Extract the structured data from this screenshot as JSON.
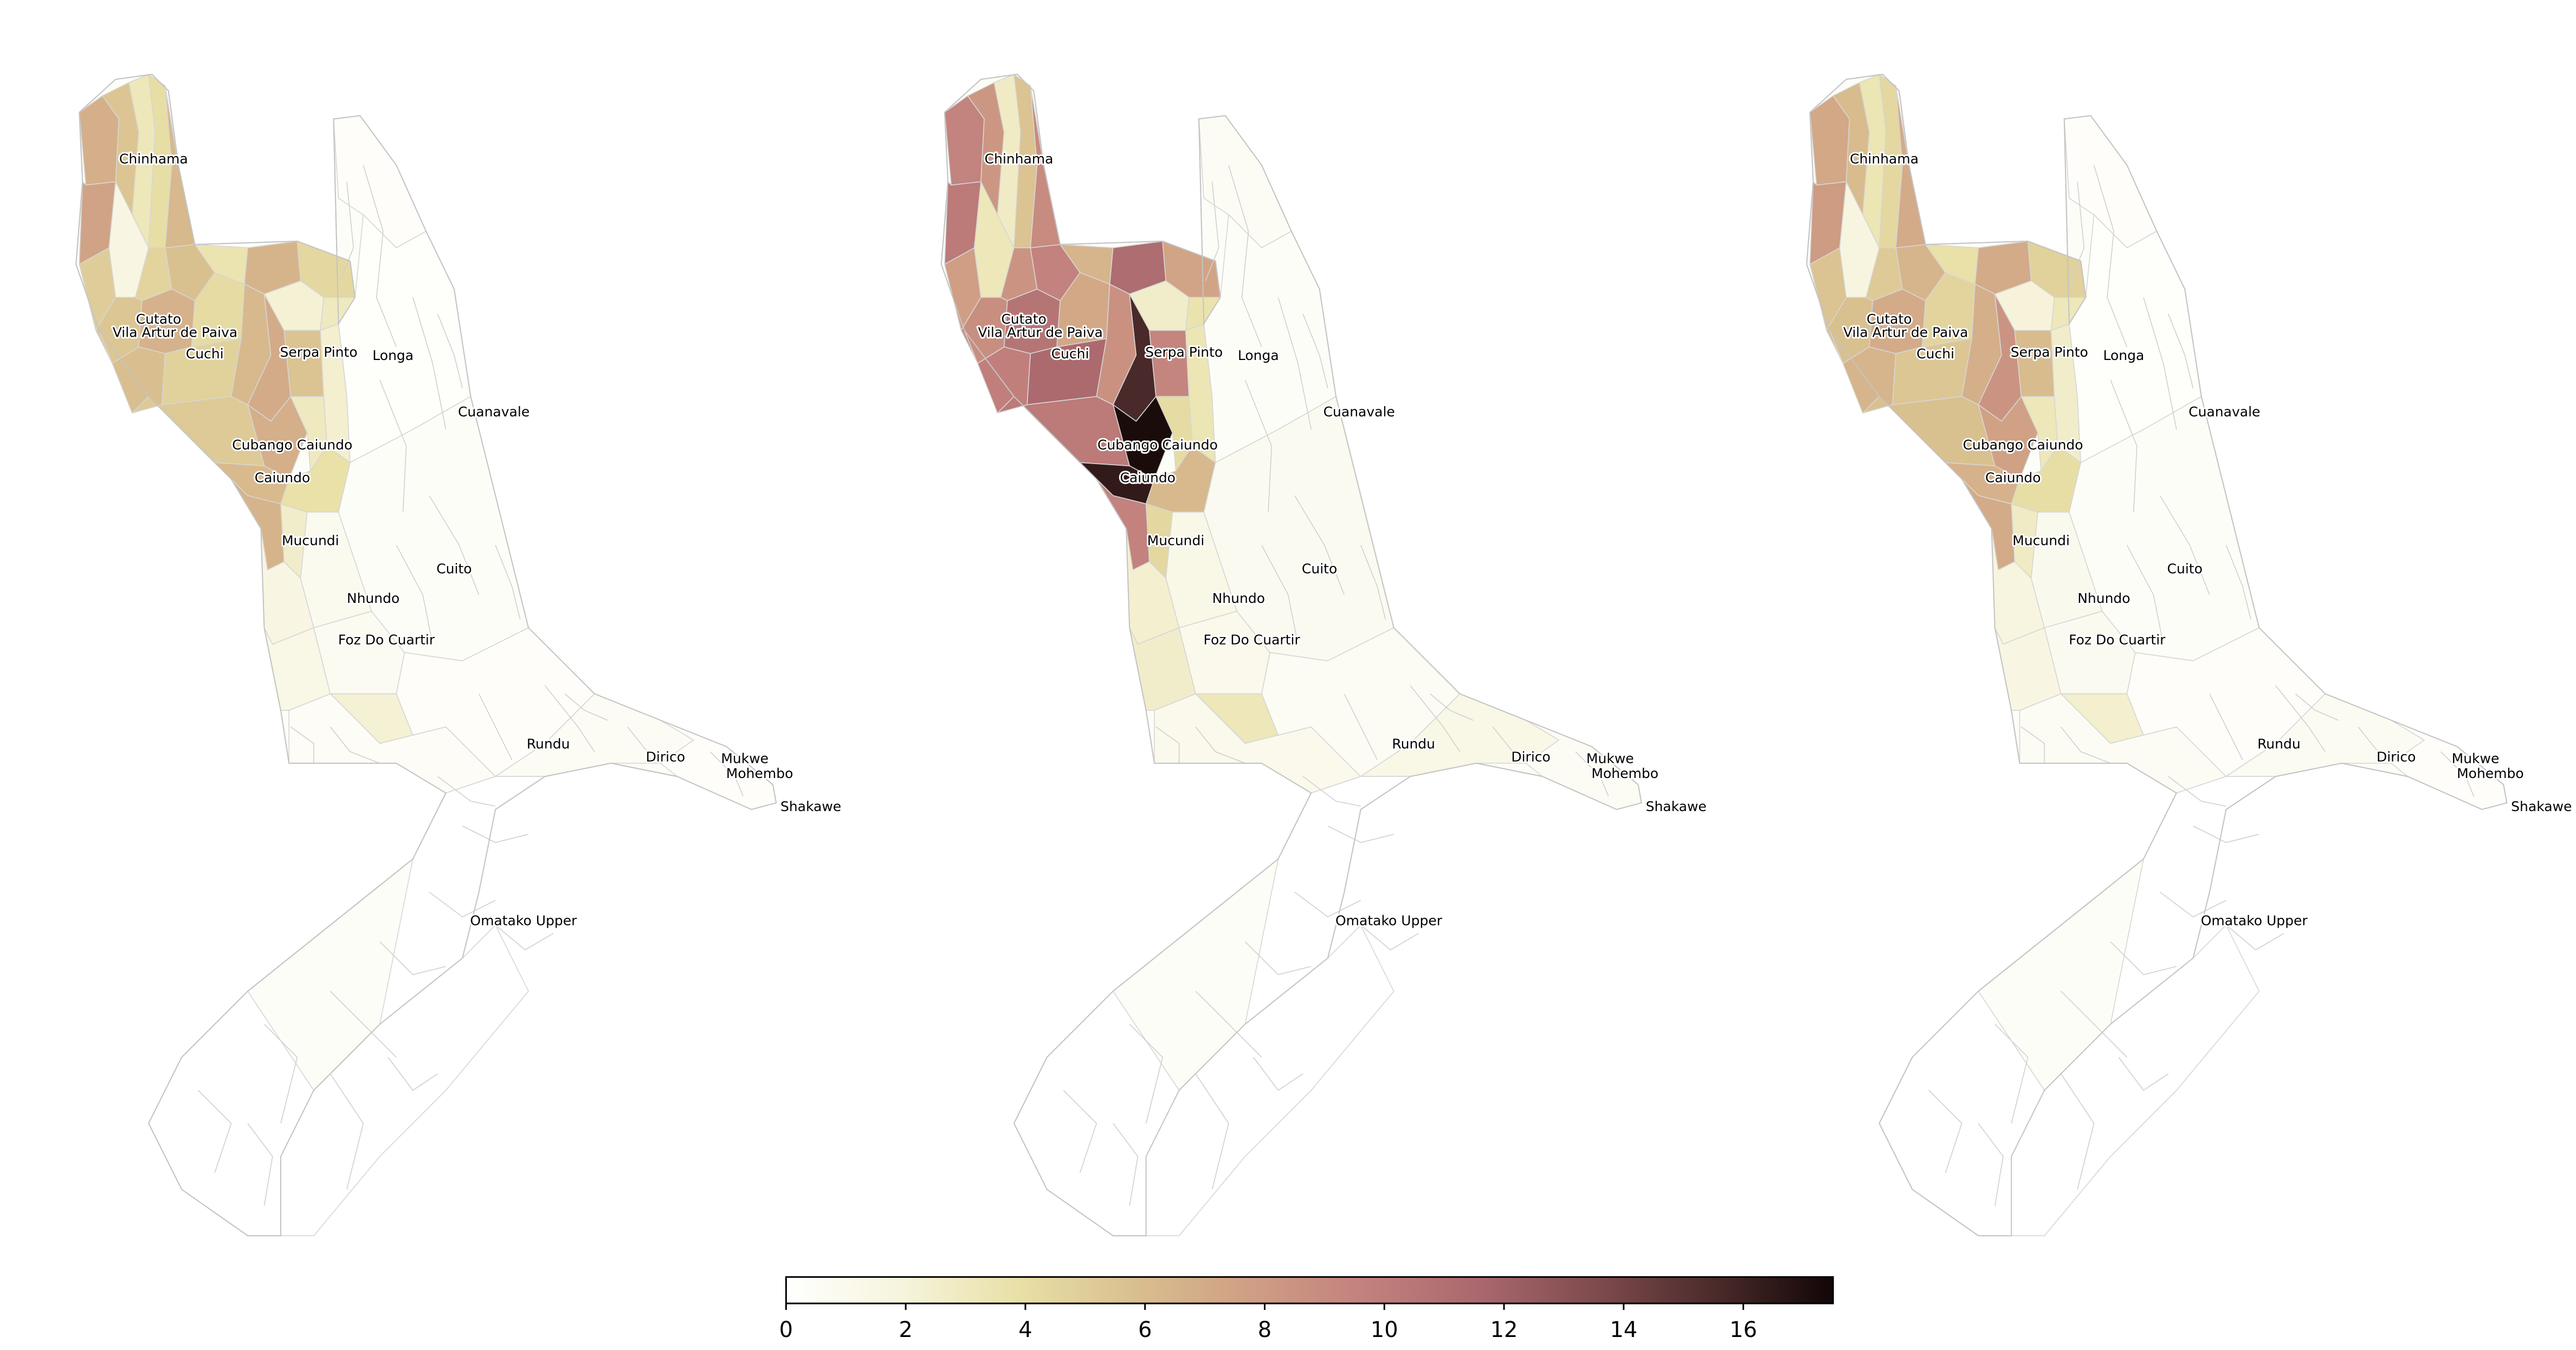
{
  "maps": [
    {
      "panel": "left",
      "regions": [
        {
          "area": "north-west-lobe",
          "value": 6.8
        },
        {
          "area": "north-strip-1",
          "value": 5.5
        },
        {
          "area": "north-strip-2",
          "value": 3.2
        },
        {
          "area": "north-strip-3",
          "value": 4.0
        },
        {
          "area": "north-strip-4",
          "value": 6.2
        },
        {
          "area": "north-west-edge",
          "value": 7.5
        },
        {
          "area": "chinhama-west",
          "value": 5.0
        },
        {
          "area": "chinhama-light",
          "value": 1.6
        },
        {
          "area": "upper-mid-1",
          "value": 4.6
        },
        {
          "area": "upper-mid-2",
          "value": 5.8
        },
        {
          "area": "upper-mid-3",
          "value": 3.5
        },
        {
          "area": "upper-mid-4",
          "value": 6.5
        },
        {
          "area": "upper-east-1",
          "value": 4.4
        },
        {
          "area": "upper-east-2",
          "value": 3.0
        },
        {
          "area": "upper-east-3",
          "value": 2.2
        },
        {
          "area": "cutato-1",
          "value": 5.4
        },
        {
          "area": "cutato-2",
          "value": 6.6
        },
        {
          "area": "cutato-3",
          "value": 4.2
        },
        {
          "area": "cuchi-1",
          "value": 5.9
        },
        {
          "area": "cuchi-2",
          "value": 4.8
        },
        {
          "area": "cuchi-3",
          "value": 6.2
        },
        {
          "area": "serpa-1",
          "value": 7.0
        },
        {
          "area": "serpa-2",
          "value": 5.6
        },
        {
          "area": "serpa-3",
          "value": 2.4
        },
        {
          "area": "cubango-1",
          "value": 6.8
        },
        {
          "area": "cubango-2",
          "value": 5.2
        },
        {
          "area": "cubango-3",
          "value": 3.0
        },
        {
          "area": "caiundo-1",
          "value": 6.1
        },
        {
          "area": "caiundo-2",
          "value": 3.8
        },
        {
          "area": "mucundi-1",
          "value": 6.5
        },
        {
          "area": "mucundi-2",
          "value": 2.6
        },
        {
          "area": "nhundo-1",
          "value": 1.6
        },
        {
          "area": "nhundo-2",
          "value": 0.9
        },
        {
          "area": "foz-1",
          "value": 1.4
        },
        {
          "area": "foz-2",
          "value": 0.7
        },
        {
          "area": "foz-3",
          "value": 2.2
        },
        {
          "area": "east-1",
          "value": 0.3
        },
        {
          "area": "east-2",
          "value": 0.2
        },
        {
          "area": "east-3",
          "value": 0.4
        },
        {
          "area": "rundu-1",
          "value": 0.5
        },
        {
          "area": "rundu-2",
          "value": 0.3
        },
        {
          "area": "dirico-1",
          "value": 0.6
        },
        {
          "area": "mukwe-1",
          "value": 0.3
        },
        {
          "area": "south-1",
          "value": 0.0
        },
        {
          "area": "south-2",
          "value": 0.0
        }
      ]
    },
    {
      "panel": "middle",
      "regions": [
        {
          "area": "north-west-lobe",
          "value": 9.5
        },
        {
          "area": "north-strip-1",
          "value": 8.2
        },
        {
          "area": "north-strip-2",
          "value": 2.8
        },
        {
          "area": "north-strip-3",
          "value": 5.6
        },
        {
          "area": "north-strip-4",
          "value": 9.0
        },
        {
          "area": "north-west-edge",
          "value": 10.2
        },
        {
          "area": "chinhama-west",
          "value": 7.8
        },
        {
          "area": "chinhama-light",
          "value": 3.2
        },
        {
          "area": "upper-mid-1",
          "value": 8.4
        },
        {
          "area": "upper-mid-2",
          "value": 9.6
        },
        {
          "area": "upper-mid-3",
          "value": 6.4
        },
        {
          "area": "upper-mid-4",
          "value": 11.2
        },
        {
          "area": "upper-east-1",
          "value": 7.4
        },
        {
          "area": "upper-east-2",
          "value": 3.6
        },
        {
          "area": "upper-east-3",
          "value": 2.6
        },
        {
          "area": "cutato-1",
          "value": 8.8
        },
        {
          "area": "cutato-2",
          "value": 10.6
        },
        {
          "area": "cutato-3",
          "value": 7.2
        },
        {
          "area": "cuchi-1",
          "value": 9.8
        },
        {
          "area": "cuchi-2",
          "value": 11.4
        },
        {
          "area": "cuchi-3",
          "value": 8.6
        },
        {
          "area": "serpa-1",
          "value": 15.6
        },
        {
          "area": "serpa-2",
          "value": 9.4
        },
        {
          "area": "serpa-3",
          "value": 3.4
        },
        {
          "area": "cubango-1",
          "value": 17.2
        },
        {
          "area": "cubango-2",
          "value": 10.2
        },
        {
          "area": "cubango-3",
          "value": 4.2
        },
        {
          "area": "caiundo-1",
          "value": 16.4
        },
        {
          "area": "caiundo-2",
          "value": 6.2
        },
        {
          "area": "mucundi-1",
          "value": 9.6
        },
        {
          "area": "mucundi-2",
          "value": 4.4
        },
        {
          "area": "nhundo-1",
          "value": 2.4
        },
        {
          "area": "nhundo-2",
          "value": 1.4
        },
        {
          "area": "foz-1",
          "value": 2.6
        },
        {
          "area": "foz-2",
          "value": 1.1
        },
        {
          "area": "foz-3",
          "value": 3.2
        },
        {
          "area": "east-1",
          "value": 0.6
        },
        {
          "area": "east-2",
          "value": 0.4
        },
        {
          "area": "east-3",
          "value": 0.8
        },
        {
          "area": "rundu-1",
          "value": 1.1
        },
        {
          "area": "rundu-2",
          "value": 0.6
        },
        {
          "area": "dirico-1",
          "value": 1.4
        },
        {
          "area": "mukwe-1",
          "value": 0.6
        },
        {
          "area": "south-1",
          "value": 0.0
        },
        {
          "area": "south-2",
          "value": 0.0
        }
      ]
    },
    {
      "panel": "right",
      "regions": [
        {
          "area": "north-west-lobe",
          "value": 7.2
        },
        {
          "area": "north-strip-1",
          "value": 6.0
        },
        {
          "area": "north-strip-2",
          "value": 3.4
        },
        {
          "area": "north-strip-3",
          "value": 4.4
        },
        {
          "area": "north-strip-4",
          "value": 7.0
        },
        {
          "area": "north-west-edge",
          "value": 8.0
        },
        {
          "area": "chinhama-west",
          "value": 5.6
        },
        {
          "area": "chinhama-light",
          "value": 1.8
        },
        {
          "area": "upper-mid-1",
          "value": 5.2
        },
        {
          "area": "upper-mid-2",
          "value": 6.4
        },
        {
          "area": "upper-mid-3",
          "value": 3.8
        },
        {
          "area": "upper-mid-4",
          "value": 7.0
        },
        {
          "area": "upper-east-1",
          "value": 4.8
        },
        {
          "area": "upper-east-2",
          "value": 3.2
        },
        {
          "area": "upper-east-3",
          "value": 2.0
        },
        {
          "area": "cutato-1",
          "value": 5.8
        },
        {
          "area": "cutato-2",
          "value": 7.0
        },
        {
          "area": "cutato-3",
          "value": 4.6
        },
        {
          "area": "cuchi-1",
          "value": 6.4
        },
        {
          "area": "cuchi-2",
          "value": 5.4
        },
        {
          "area": "cuchi-3",
          "value": 6.8
        },
        {
          "area": "serpa-1",
          "value": 8.4
        },
        {
          "area": "serpa-2",
          "value": 6.0
        },
        {
          "area": "serpa-3",
          "value": 2.6
        },
        {
          "area": "cubango-1",
          "value": 7.6
        },
        {
          "area": "cubango-2",
          "value": 5.8
        },
        {
          "area": "cubango-3",
          "value": 3.2
        },
        {
          "area": "caiundo-1",
          "value": 6.6
        },
        {
          "area": "caiundo-2",
          "value": 4.0
        },
        {
          "area": "mucundi-1",
          "value": 7.0
        },
        {
          "area": "mucundi-2",
          "value": 2.8
        },
        {
          "area": "nhundo-1",
          "value": 1.8
        },
        {
          "area": "nhundo-2",
          "value": 1.0
        },
        {
          "area": "foz-1",
          "value": 1.6
        },
        {
          "area": "foz-2",
          "value": 0.8
        },
        {
          "area": "foz-3",
          "value": 2.4
        },
        {
          "area": "east-1",
          "value": 0.3
        },
        {
          "area": "east-2",
          "value": 0.2
        },
        {
          "area": "east-3",
          "value": 0.4
        },
        {
          "area": "rundu-1",
          "value": 0.6
        },
        {
          "area": "rundu-2",
          "value": 0.3
        },
        {
          "area": "dirico-1",
          "value": 0.7
        },
        {
          "area": "mukwe-1",
          "value": 0.3
        },
        {
          "area": "south-1",
          "value": 0.0
        },
        {
          "area": "south-2",
          "value": 0.0
        }
      ]
    }
  ],
  "place_labels": [
    "Chinhama",
    "Cutato",
    "Vila Artur de Paiva",
    "Cuchi",
    "Serpa Pinto",
    "Longa",
    "Cuanavale",
    "Cubango Caiundo",
    "Caiundo",
    "Mucundi",
    "Cuito",
    "Nhundo",
    "Foz Do Cuartir",
    "Rundu",
    "Dirico",
    "Mukwe",
    "Mohembo",
    "Shakawe",
    "Omatako Upper"
  ],
  "colorbar": {
    "min": 0,
    "max": 17.5,
    "tick_labels": [
      "0",
      "2",
      "4",
      "6",
      "8",
      "10",
      "12",
      "14",
      "16"
    ],
    "tick_values": [
      0,
      2,
      4,
      6,
      8,
      10,
      12,
      14,
      16
    ],
    "colors": [
      "#ffffff",
      "#f6f4dc",
      "#e8e0a6",
      "#d9bf8f",
      "#cf9e84",
      "#c2807d",
      "#a8676c",
      "#7d4a4c",
      "#4a2a2a",
      "#120606"
    ]
  }
}
